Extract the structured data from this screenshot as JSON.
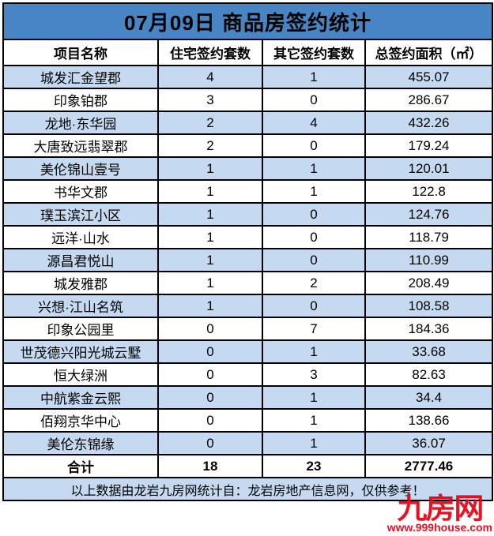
{
  "chart_data": {
    "type": "table",
    "title": "07月09日 商品房签约统计",
    "columns": [
      "项目名称",
      "住宅签约套数",
      "其它签约套数",
      "总签约面积（㎡）"
    ],
    "rows": [
      [
        "城发汇金望郡",
        4,
        1,
        455.07
      ],
      [
        "印象铂郡",
        3,
        0,
        286.67
      ],
      [
        "龙地·东华园",
        2,
        4,
        432.26
      ],
      [
        "大唐致远翡翠郡",
        2,
        0,
        179.24
      ],
      [
        "美伦锦山壹号",
        1,
        1,
        120.01
      ],
      [
        "书华文郡",
        1,
        1,
        122.8
      ],
      [
        "璞玉滨江小区",
        1,
        0,
        124.76
      ],
      [
        "远洋·山水",
        1,
        0,
        118.79
      ],
      [
        "源昌君悦山",
        1,
        0,
        110.99
      ],
      [
        "城发雅郡",
        1,
        2,
        208.49
      ],
      [
        "兴想·江山名筑",
        1,
        0,
        108.58
      ],
      [
        "印象公园里",
        0,
        7,
        184.36
      ],
      [
        "世茂德兴阳光城云墅",
        0,
        1,
        33.68
      ],
      [
        "恒大绿洲",
        0,
        3,
        82.63
      ],
      [
        "中航紫金云熙",
        0,
        1,
        34.4
      ],
      [
        "佰翔京华中心",
        0,
        1,
        138.66
      ],
      [
        "美伦东锦缘",
        0,
        1,
        36.07
      ]
    ],
    "total_row": [
      "合计",
      18,
      23,
      2777.46
    ],
    "layout": {
      "striped": true,
      "first_data_row_shaded": true,
      "grid": true
    }
  },
  "footer": {
    "note": "以上数据由龙岩九房网统计自：龙岩房地产信息网，仅供参考！"
  },
  "watermark": {
    "logo": "九房网",
    "url": "www.999house.com"
  },
  "colors": {
    "title_bg": "#4785c4",
    "alt_row_bg": "#c5d9f1",
    "border": "#000000",
    "watermark_red": "#e60012"
  }
}
